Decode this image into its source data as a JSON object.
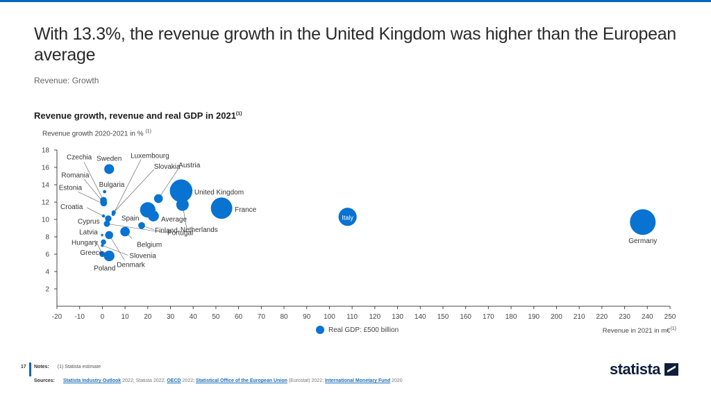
{
  "header": {
    "title": "With 13.3%, the revenue growth in the United Kingdom was higher than the European average",
    "subtitle": "Revenue: Growth"
  },
  "chart_data": {
    "type": "scatter",
    "title": "Revenue growth, revenue and real GDP in 2021",
    "title_footnote": "(1)",
    "xlabel": "Revenue in 2021 in m€",
    "xlabel_footnote": "(1)",
    "ylabel": "Revenue growth 2020-2021 in %",
    "ylabel_footnote": "(1)",
    "xlim": [
      -20,
      250
    ],
    "ylim": [
      0,
      18
    ],
    "xticks": [
      -20,
      -10,
      0,
      10,
      20,
      30,
      40,
      50,
      60,
      70,
      80,
      90,
      100,
      110,
      120,
      130,
      140,
      150,
      160,
      170,
      180,
      190,
      200,
      210,
      220,
      230,
      240,
      250
    ],
    "yticks": [
      2,
      4,
      6,
      8,
      10,
      12,
      14,
      16,
      18
    ],
    "grid": false,
    "bubble_size_measure": "Real GDP",
    "legend": {
      "label": "Real GDP: £500 billion",
      "placement": "bottom-center"
    },
    "color": "#0873d1",
    "points": [
      {
        "name": "Germany",
        "x": 238,
        "y": 9.7,
        "gdp": 3600
      },
      {
        "name": "Italy",
        "x": 108,
        "y": 10.3,
        "gdp": 1800
      },
      {
        "name": "France",
        "x": 52.5,
        "y": 11.3,
        "gdp": 2500
      },
      {
        "name": "United Kingdom",
        "x": 34.7,
        "y": 13.3,
        "gdp": 2800
      },
      {
        "name": "Netherlands",
        "x": 35.3,
        "y": 11.7,
        "gdp": 850
      },
      {
        "name": "Spain",
        "x": 20,
        "y": 11.1,
        "gdp": 1300
      },
      {
        "name": "Average",
        "x": 22.5,
        "y": 10.4,
        "gdp": 650
      },
      {
        "name": "Austria",
        "x": 24.7,
        "y": 12.4,
        "gdp": 420
      },
      {
        "name": "Finland",
        "x": 17.3,
        "y": 9.3,
        "gdp": 250
      },
      {
        "name": "Belgium",
        "x": 10,
        "y": 8.6,
        "gdp": 500
      },
      {
        "name": "Sweden",
        "x": 3,
        "y": 15.8,
        "gdp": 530
      },
      {
        "name": "Poland",
        "x": 3,
        "y": 5.8,
        "gdp": 620
      },
      {
        "name": "Denmark",
        "x": 3,
        "y": 8.2,
        "gdp": 350
      },
      {
        "name": "Cyprus",
        "x": 2.6,
        "y": 10.1,
        "gdp": 230
      },
      {
        "name": "Czechia",
        "x": 0.5,
        "y": 12.2,
        "gdp": 250
      },
      {
        "name": "Romania",
        "x": 0.6,
        "y": 11.9,
        "gdp": 250
      },
      {
        "name": "Estonia",
        "x": 0.4,
        "y": 11.8,
        "gdp": 30
      },
      {
        "name": "Bulgaria",
        "x": 1,
        "y": 13.2,
        "gdp": 60
      },
      {
        "name": "Croatia",
        "x": 0.5,
        "y": 10.4,
        "gdp": 55
      },
      {
        "name": "Luxembourg",
        "x": 4.8,
        "y": 10.6,
        "gdp": 65
      },
      {
        "name": "Slovakia",
        "x": 5,
        "y": 10.8,
        "gdp": 100
      },
      {
        "name": "Latvia",
        "x": -0.1,
        "y": 8.2,
        "gdp": 30
      },
      {
        "name": "Hungary",
        "x": 0.5,
        "y": 7.4,
        "gdp": 150
      },
      {
        "name": "Greece",
        "x": 0,
        "y": 6.0,
        "gdp": 180
      },
      {
        "name": "Slovenia",
        "x": 0,
        "y": 7.0,
        "gdp": 50
      },
      {
        "name": "Portugal",
        "x": 2,
        "y": 9.5,
        "gdp": 210
      }
    ]
  },
  "footer": {
    "page_number": "17",
    "notes_label": "Notes:",
    "notes_text": "(1) Statista estimate",
    "sources_label": "Sources:",
    "sources": [
      {
        "text": "Statista Industry Outlook",
        "link": true
      },
      {
        "text": " 2022; Statista 2022; ",
        "link": false
      },
      {
        "text": "OECD",
        "link": true
      },
      {
        "text": " 2022; ",
        "link": false
      },
      {
        "text": "Statistical Office of the European Union",
        "link": true
      },
      {
        "text": " (Eurostat) 2022; ",
        "link": false
      },
      {
        "text": "International Monetary Fund",
        "link": true
      },
      {
        "text": " 2020",
        "link": false
      }
    ],
    "logo_text": "statista"
  }
}
